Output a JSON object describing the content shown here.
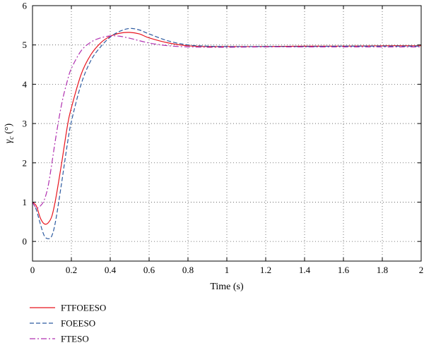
{
  "chart_data": {
    "type": "line",
    "xlabel": "Time (s)",
    "ylabel": "γ",
    "ylabel_sub": "c",
    "ylabel_unit": " (°)",
    "xlim": [
      0,
      2
    ],
    "ylim": [
      -0.5,
      6
    ],
    "xticks": [
      0,
      0.2,
      0.4,
      0.6,
      0.8,
      1,
      1.2,
      1.4,
      1.6,
      1.8,
      2
    ],
    "xtick_labels": [
      "0",
      "0.2",
      "0.4",
      "0.6",
      "0.8",
      "1",
      "1.2",
      "1.4",
      "1.6",
      "1.8",
      "2"
    ],
    "yticks": [
      0,
      1,
      2,
      3,
      4,
      5,
      6
    ],
    "ytick_labels": [
      "0",
      "1",
      "2",
      "3",
      "4",
      "5",
      "6"
    ],
    "grid": true,
    "legend_position": "below-left",
    "series": [
      {
        "name": "FTFOEESO",
        "color": "#e8141e",
        "dash": "solid",
        "points": [
          [
            0,
            1
          ],
          [
            0.02,
            0.9
          ],
          [
            0.04,
            0.6
          ],
          [
            0.06,
            0.45
          ],
          [
            0.08,
            0.47
          ],
          [
            0.1,
            0.65
          ],
          [
            0.12,
            1.1
          ],
          [
            0.15,
            2.0
          ],
          [
            0.18,
            2.95
          ],
          [
            0.2,
            3.4
          ],
          [
            0.25,
            4.25
          ],
          [
            0.3,
            4.75
          ],
          [
            0.35,
            5.05
          ],
          [
            0.4,
            5.22
          ],
          [
            0.45,
            5.3
          ],
          [
            0.5,
            5.32
          ],
          [
            0.55,
            5.28
          ],
          [
            0.6,
            5.18
          ],
          [
            0.7,
            5.05
          ],
          [
            0.8,
            4.98
          ],
          [
            0.9,
            4.96
          ],
          [
            1.0,
            4.96
          ],
          [
            1.2,
            4.96
          ],
          [
            1.4,
            4.97
          ],
          [
            1.6,
            4.97
          ],
          [
            1.8,
            4.98
          ],
          [
            2.0,
            4.98
          ]
        ]
      },
      {
        "name": "FOEESO",
        "color": "#2c5aa0",
        "dash": "6,3",
        "points": [
          [
            0,
            1
          ],
          [
            0.02,
            0.8
          ],
          [
            0.04,
            0.45
          ],
          [
            0.06,
            0.15
          ],
          [
            0.08,
            0.07
          ],
          [
            0.1,
            0.15
          ],
          [
            0.12,
            0.55
          ],
          [
            0.15,
            1.5
          ],
          [
            0.18,
            2.5
          ],
          [
            0.2,
            3.05
          ],
          [
            0.25,
            4.0
          ],
          [
            0.3,
            4.6
          ],
          [
            0.35,
            4.95
          ],
          [
            0.4,
            5.2
          ],
          [
            0.45,
            5.35
          ],
          [
            0.5,
            5.42
          ],
          [
            0.55,
            5.38
          ],
          [
            0.6,
            5.28
          ],
          [
            0.7,
            5.1
          ],
          [
            0.8,
            5.0
          ],
          [
            0.9,
            4.97
          ],
          [
            1.0,
            4.96
          ],
          [
            1.2,
            4.96
          ],
          [
            1.4,
            4.96
          ],
          [
            1.6,
            4.97
          ],
          [
            1.8,
            4.97
          ],
          [
            2.0,
            4.97
          ]
        ]
      },
      {
        "name": "FTESO",
        "color": "#b030b0",
        "dash": "8,3,2,3",
        "points": [
          [
            0,
            1
          ],
          [
            0.02,
            0.85
          ],
          [
            0.04,
            0.9
          ],
          [
            0.06,
            1.05
          ],
          [
            0.08,
            1.4
          ],
          [
            0.1,
            2.0
          ],
          [
            0.12,
            2.65
          ],
          [
            0.15,
            3.5
          ],
          [
            0.18,
            4.1
          ],
          [
            0.2,
            4.4
          ],
          [
            0.25,
            4.85
          ],
          [
            0.3,
            5.07
          ],
          [
            0.35,
            5.18
          ],
          [
            0.4,
            5.23
          ],
          [
            0.45,
            5.22
          ],
          [
            0.5,
            5.17
          ],
          [
            0.6,
            5.05
          ],
          [
            0.7,
            4.98
          ],
          [
            0.8,
            4.95
          ],
          [
            0.9,
            4.94
          ],
          [
            1.0,
            4.94
          ],
          [
            1.2,
            4.95
          ],
          [
            1.4,
            4.95
          ],
          [
            1.6,
            4.95
          ],
          [
            1.8,
            4.95
          ],
          [
            2.0,
            4.95
          ]
        ]
      }
    ]
  }
}
